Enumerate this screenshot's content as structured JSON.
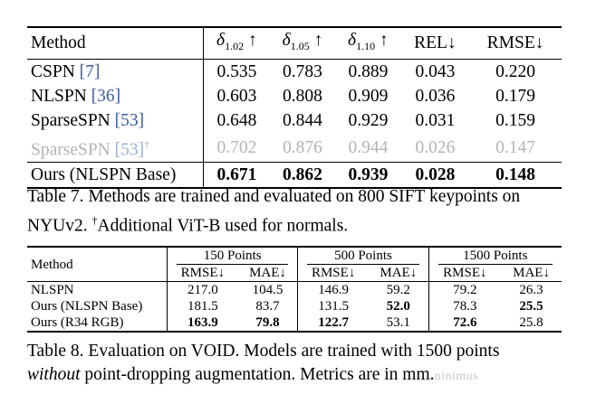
{
  "table7": {
    "headers": {
      "method": "Method",
      "d102": {
        "sym": "δ",
        "sub": "1.02",
        "arrow": "↑"
      },
      "d105": {
        "sym": "δ",
        "sub": "1.05",
        "arrow": "↑"
      },
      "d110": {
        "sym": "δ",
        "sub": "1.10",
        "arrow": "↑"
      },
      "rel": "REL↓",
      "rmse": "RMSE↓"
    },
    "rows": [
      {
        "name": "CSPN",
        "cite": "[7]",
        "dagger": "",
        "values": [
          "0.535",
          "0.783",
          "0.889",
          "0.043",
          "0.220"
        ]
      },
      {
        "name": "NLSPN",
        "cite": "[36]",
        "dagger": "",
        "values": [
          "0.603",
          "0.808",
          "0.909",
          "0.036",
          "0.179"
        ]
      },
      {
        "name": "SparseSPN",
        "cite": "[53]",
        "dagger": "",
        "values": [
          "0.648",
          "0.844",
          "0.929",
          "0.031",
          "0.159"
        ]
      },
      {
        "name": "SparseSPN",
        "cite": "[53]",
        "dagger": "†",
        "values": [
          "0.702",
          "0.876",
          "0.944",
          "0.026",
          "0.147"
        ]
      },
      {
        "name": "Ours (NLSPN Base)",
        "cite": "",
        "dagger": "",
        "values": [
          "0.671",
          "0.862",
          "0.939",
          "0.028",
          "0.148"
        ]
      }
    ]
  },
  "caption7": {
    "prefix": "Table 7. Methods are trained and evaluated on 800 SIFT keypoints on NYUv2.",
    "dagger": "†",
    "suffix": "Additional ViT-B used for normals."
  },
  "table8": {
    "method_header": "Method",
    "groups": [
      "150 Points",
      "500 Points",
      "1500 Points"
    ],
    "subheaders": [
      "RMSE↓",
      "MAE↓",
      "RMSE↓",
      "MAE↓",
      "RMSE↓",
      "MAE↓"
    ],
    "rows": [
      {
        "name": "NLSPN",
        "values": [
          "217.0",
          "104.5",
          "146.9",
          "59.2",
          "79.2",
          "26.3"
        ]
      },
      {
        "name": "Ours (NLSPN Base)",
        "values": [
          "181.5",
          "83.7",
          "131.5",
          "52.0",
          "78.3",
          "25.5"
        ]
      },
      {
        "name": "Ours (R34 RGB)",
        "values": [
          "163.9",
          "79.8",
          "122.7",
          "53.1",
          "72.6",
          "25.8"
        ]
      }
    ]
  },
  "caption8": {
    "line1": "Table 8. Evaluation on VOID. Models are trained with 1500 points",
    "italic": "without",
    "line2": "point-dropping augmentation. Metrics are in mm.",
    "watermark": "ninimus"
  }
}
